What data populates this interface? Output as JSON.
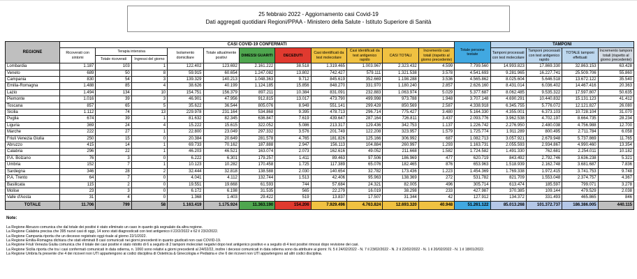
{
  "title": {
    "line1": "25 febbraio 2022 - Aggiornamento casi Covid-19",
    "line2": "Dati aggregati quotidiani Regioni/PPAA - Ministero della Salute - Istituto Superiore di Sanità"
  },
  "table": {
    "headers": {
      "regione": "REGIONE",
      "casi_confermati": "CASI COVID-19 CONFERMATI",
      "terapia_intensiva": "Terapia intensiva",
      "ricoverati_con_sintomi": "Ricoverati con sintomi",
      "ti_totale_ricoverati": "Totale ricoverati",
      "ti_ingressi_giorno": "Ingressi del giorno",
      "isolamento_domiciliare": "Isolamento domiciliare",
      "totale_attualmente_positivi": "Totale attualmente positivi",
      "dimessi_guariti": "DIMESSI GUARITI",
      "deceduti": "DECEDUTI",
      "casi_test_molecolare": "Casi identificati da test molecolare",
      "casi_test_antigenico": "Casi identificati da test antigenico rapido",
      "casi_totali": "CASI TOTALI",
      "incremento_casi": "Incremento casi totali (rispetto al giorno precedente)",
      "totale_persone_testate": "Totale persone testate",
      "tamponi": "TAMPONI",
      "tamponi_molecolare": "Tamponi processati con test molecolare",
      "tamponi_antigenico": "Tamponi processati con test antigenico rapido",
      "totale_tamponi": "TOTALE tamponi effettuati",
      "incremento_tamponi": "Incremento tamponi totali (rispetto al giorno precedente)"
    },
    "rows": [
      {
        "regione": "Lombardia",
        "values": [
          "1.187",
          "103",
          "1",
          "122.402",
          "123.692",
          "2.161.222",
          "38.518",
          "1.319.465",
          "1.003.967",
          "2.323.432",
          "4.599",
          "7.799.560",
          "14.993.823",
          "17.869.330",
          "32.863.153",
          "63.428"
        ]
      },
      {
        "regione": "Veneto",
        "values": [
          "689",
          "50",
          "8",
          "59.915",
          "60.654",
          "1.247.082",
          "13.802",
          "742.427",
          "579.111",
          "1.321.538",
          "3.578",
          "4.541.693",
          "9.281.965",
          "16.227.741",
          "25.509.706",
          "55.860"
        ]
      },
      {
        "regione": "Campania",
        "values": [
          "830",
          "54",
          "3",
          "139.329",
          "140.213",
          "1.048.363",
          "9.712",
          "845.619",
          "352.669",
          "1.198.288",
          "3.536",
          "4.565.862",
          "8.025.604",
          "5.646.518",
          "13.672.122",
          "35.540"
        ]
      },
      {
        "regione": "Emilia-Romagna",
        "values": [
          "1.488",
          "85",
          "4",
          "38.626",
          "40.199",
          "1.124.185",
          "15.856",
          "848.270",
          "331.970",
          "1.180.240",
          "2.857",
          "2.626.160",
          "8.431.014",
          "6.036.402",
          "14.467.416",
          "20.363"
        ]
      },
      {
        "regione": "Lazio",
        "values": [
          "1.494",
          "134",
          "10",
          "154.751",
          "156.379",
          "897.211",
          "10.384",
          "831.091",
          "232.883",
          "1.063.974",
          "5.029",
          "5.377.687",
          "8.062.485",
          "9.535.322",
          "17.597.807",
          "50.635"
        ]
      },
      {
        "regione": "Piemonte",
        "values": [
          "1.016",
          "39",
          "3",
          "46.901",
          "47.956",
          "912.815",
          "13.017",
          "473.790",
          "499.998",
          "973.788",
          "1.948",
          "3.707.148",
          "4.690.291",
          "10.440.832",
          "15.131.123",
          "41.412"
        ]
      },
      {
        "regione": "Toscana",
        "values": [
          "857",
          "65",
          "5",
          "35.622",
          "36.544",
          "805.076",
          "8.949",
          "551.141",
          "299.428",
          "850.569",
          "2.587",
          "4.338.918",
          "6.345.755",
          "5.776.072",
          "12.121.827",
          "26.080"
        ]
      },
      {
        "regione": "Sicilia",
        "values": [
          "1.112",
          "74",
          "13",
          "229.978",
          "231.164",
          "534.868",
          "9.395",
          "478.713",
          "296.714",
          "775.427",
          "3.480",
          "5.164.330",
          "4.355.001",
          "6.373.103",
          "10.728.104",
          "31.070"
        ]
      },
      {
        "regione": "Puglia",
        "values": [
          "674",
          "39",
          "1",
          "81.632",
          "82.345",
          "636.847",
          "7.619",
          "439.647",
          "287.164",
          "726.811",
          "3.437",
          "2.093.776",
          "3.962.538",
          "4.702.197",
          "8.664.735",
          "28.234"
        ]
      },
      {
        "regione": "Liguria",
        "values": [
          "369",
          "24",
          "4",
          "15.222",
          "15.615",
          "322.052",
          "5.086",
          "213.317",
          "129.436",
          "342.753",
          "1.137",
          "1.226.742",
          "2.276.950",
          "2.480.038",
          "4.756.988",
          "12.700"
        ]
      },
      {
        "regione": "Marche",
        "values": [
          "222",
          "27",
          "1",
          "22.800",
          "23.049",
          "297.332",
          "3.576",
          "201.749",
          "122.208",
          "323.957",
          "1.579",
          "1.725.774",
          "1.911.289",
          "800.495",
          "2.711.784",
          "6.058"
        ]
      },
      {
        "regione": "Friuli Venezia Giulia",
        "values": [
          "250",
          "15",
          "0",
          "20.384",
          "20.649",
          "281.578",
          "4.765",
          "181.826",
          "125.166",
          "306.992",
          "687",
          "1.082.713",
          "3.057.921",
          "2.679.948",
          "5.737.869",
          "11.765"
        ]
      },
      {
        "regione": "Abruzzo",
        "values": [
          "415",
          "14",
          "1",
          "69.733",
          "70.162",
          "187.888",
          "2.947",
          "156.113",
          "104.884",
          "260.997",
          "1.293",
          "1.163.731",
          "2.055.593",
          "2.934.867",
          "4.990.460",
          "13.354"
        ]
      },
      {
        "regione": "Calabria",
        "values": [
          "296",
          "22",
          "1",
          "46.203",
          "46.521",
          "163.074",
          "2.073",
          "162.616",
          "49.052",
          "211.668",
          "1.582",
          "1.724.582",
          "1.491.330",
          "762.681",
          "2.254.011",
          "10.182"
        ]
      },
      {
        "regione": "P.A. Bolzano",
        "values": [
          "76",
          "3",
          "0",
          "6.222",
          "6.301",
          "179.257",
          "1.411",
          "89.463",
          "97.506",
          "186.969",
          "477",
          "620.719",
          "843.492",
          "2.792.746",
          "3.636.238",
          "5.321"
        ]
      },
      {
        "regione": "Umbria",
        "values": [
          "152",
          "7",
          "1",
          "10.123",
          "10.282",
          "170.458",
          "1.725",
          "117.389",
          "65.076",
          "182.465",
          "876",
          "653.963",
          "1.518.939",
          "2.162.748",
          "3.681.687",
          "7.836"
        ]
      },
      {
        "regione": "Sardegna",
        "values": [
          "346",
          "28",
          "2",
          "32.444",
          "32.818",
          "138.588",
          "2.030",
          "140.654",
          "32.782",
          "173.436",
          "1.223",
          "1.454.369",
          "1.769.338",
          "1.972.415",
          "3.741.753",
          "9.748"
        ]
      },
      {
        "regione": "P.A. Trento",
        "values": [
          "64",
          "7",
          "0",
          "4.041",
          "4.112",
          "132.744",
          "1.513",
          "42.406",
          "95.963",
          "138.369",
          "272",
          "531.782",
          "821.709",
          "1.553.048",
          "2.374.757",
          "4.367"
        ]
      },
      {
        "regione": "Basilicata",
        "values": [
          "115",
          "2",
          "0",
          "19.551",
          "19.668",
          "61.593",
          "744",
          "57.684",
          "24.321",
          "82.005",
          "496",
          "305.714",
          "613.474",
          "185.597",
          "799.071",
          "3.278"
        ]
      },
      {
        "regione": "Molise",
        "values": [
          "23",
          "3",
          "0",
          "6.172",
          "6.198",
          "31.535",
          "565",
          "22.279",
          "16.019",
          "38.298",
          "233",
          "427.987",
          "370.385",
          "109.144",
          "479.529",
          "2.038"
        ]
      },
      {
        "regione": "Valle d'Aosta",
        "values": [
          "31",
          "4",
          "0",
          "1.368",
          "1.403",
          "29.422",
          "519",
          "13.837",
          "17.507",
          "31.344",
          "42",
          "127.912",
          "134.372",
          "331.493",
          "465.865",
          "846"
        ]
      }
    ],
    "total": {
      "regione": "TOTALE",
      "values": [
        "11.706",
        "799",
        "58",
        "1.163.419",
        "1.175.924",
        "11.363.190",
        "154.206",
        "7.929.496",
        "4.763.824",
        "12.693.320",
        "40.948",
        "51.261.122",
        "85.013.268",
        "101.372.737",
        "186.386.005",
        "440.115"
      ]
    }
  },
  "notes": {
    "heading": "Note:",
    "items": [
      "La Regione Abruzzo comunica che dal totale dei positivi è stato eliminato un caso in quanto già segnalato da altra regione.",
      "La Regione Calabria precisa  che 395 nuovi casi di oggi, 14 sono stati diagnosticati con test antigenico il 22/2/2022 e 62 il 23/2/2022.",
      "La Regione Campania riporta che un decesso registrato oggi risale al giorno 22/1/2022.",
      "La Regione Emilia-Romagna  dichiara che stati eliminati 8 casi comunicati nei giorni precedenti in quanto giudicati non casi COVID-19.",
      "La Regione Friuli Venezia Giulia comunica che  il totale dei casi positivi è stato ridotto di 6 a seguito di 2 tamponi molecolari negativi dopo test antigenico positivo e a seguito di 4 test positivi rimossi dopo revisione dei casi.",
      "La Regione Sicilia riporta che tra i casi confermati comunicati in data odierna, n. 1060 sono relativi a giorni precedenti al 24/02/22, inoltre i decessi comunicati in data odierna sono da attribuire ai giorni: N. 5 il 24/02/2022 - N. 7 il 23/02/2022 - N. 2 il 22/02/2022 - N. 1 il 20/02/2022 - N. 1 il 18/01/2022.",
      "La Regione Umbria fa presente che 4 dei ricoveri non UTI appartengono ai codici disciplina di Ostetricia & Ginecologia e Pediatria e che  6 dei ricoveri non UTI appartengono ad altri codici disciplina."
    ]
  },
  "colors": {
    "header_gray": "#bfbfbf",
    "green": "#4fa64f",
    "red": "#e03a2f",
    "yellow": "#f0c141",
    "blue": "#41a8e1",
    "light_blue_header": "#bdd7ee",
    "light_blue_total": "#b4c7e7",
    "gray_blue_header": "#d6dce4"
  }
}
